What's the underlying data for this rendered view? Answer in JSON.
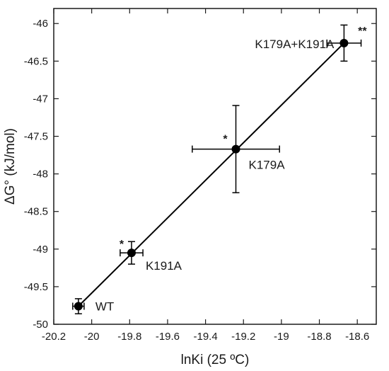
{
  "chart_data": {
    "type": "scatter",
    "xlabel": "lnKi (25 ºC)",
    "ylabel": "ΔG° (kJ/mol)",
    "xlim": [
      -20.2,
      -18.5
    ],
    "ylim": [
      -50,
      -45.8
    ],
    "x_ticks": [
      -20.2,
      -20,
      -19.8,
      -19.6,
      -19.4,
      -19.2,
      -19,
      -18.8,
      -18.6
    ],
    "x_tick_labels": [
      "-20.2",
      "-20",
      "-19.8",
      "-19.6",
      "-19.4",
      "-19.2",
      "-19",
      "-18.8",
      "-18.6"
    ],
    "y_ticks": [
      -50,
      -49.5,
      -49,
      -48.5,
      -48,
      -47.5,
      -47,
      -46.5,
      -46
    ],
    "y_tick_labels": [
      "-50",
      "-49.5",
      "-49",
      "-48.5",
      "-48",
      "-47.5",
      "-47",
      "-46.5",
      "-46"
    ],
    "grid": false,
    "points": [
      {
        "label": "WT",
        "x": -20.07,
        "y": -49.76,
        "x_err": 0.03,
        "y_err": 0.1,
        "marker": ""
      },
      {
        "label": "K191A",
        "x": -19.79,
        "y": -49.05,
        "x_err": 0.06,
        "y_err": 0.15,
        "marker": "*"
      },
      {
        "label": "K179A",
        "x": -19.24,
        "y": -47.67,
        "x_err": 0.23,
        "y_err": 0.58,
        "marker": "*"
      },
      {
        "label": "K179A+K191A",
        "x": -18.67,
        "y": -46.26,
        "x_err": 0.09,
        "y_err": 0.24,
        "marker": "**"
      }
    ],
    "fit_line": {
      "x": [
        -20.07,
        -18.67
      ],
      "y": [
        -49.76,
        -46.26
      ]
    }
  }
}
